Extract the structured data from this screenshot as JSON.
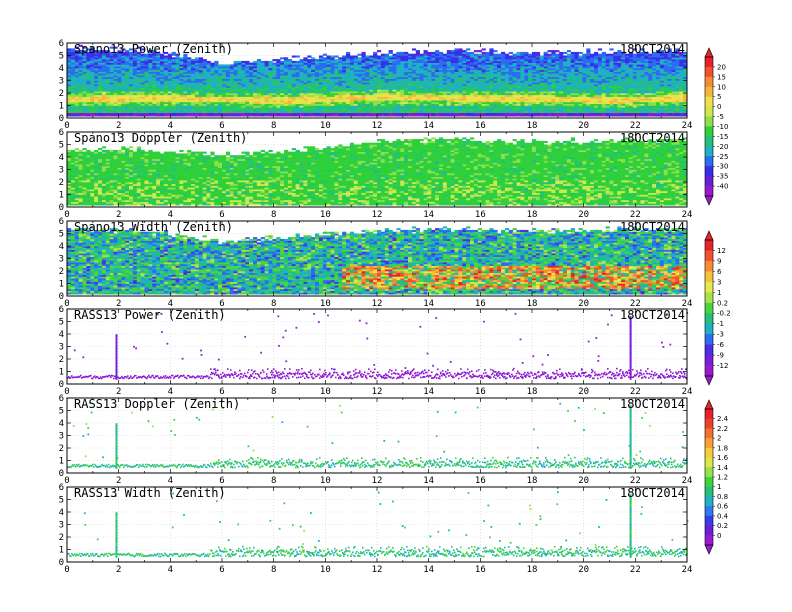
{
  "figure": {
    "date": "18OCT2014",
    "x_ticks": [
      "0",
      "2",
      "4",
      "6",
      "8",
      "10",
      "12",
      "14",
      "16",
      "18",
      "20",
      "22",
      "24"
    ],
    "y_ticks": [
      "0",
      "1",
      "2",
      "3",
      "4",
      "5",
      "6"
    ]
  },
  "chart_data": [
    {
      "type": "heatmap",
      "title": "Spano13 Power (Zenith)",
      "xlim": [
        0,
        24
      ],
      "ylim": [
        0,
        6
      ],
      "grid": true,
      "colorbar": "power",
      "approx_profile": {
        "x_hours": [
          0,
          3,
          6,
          9,
          12,
          15,
          18,
          21,
          24
        ],
        "strong_layer_height": [
          1.5,
          1.6,
          1.5,
          1.4,
          1.7,
          1.6,
          1.6,
          1.4,
          1.6
        ],
        "top_height": [
          5.6,
          5.4,
          4.4,
          4.8,
          5.2,
          5.4,
          5.2,
          5.3,
          5.4
        ]
      }
    },
    {
      "type": "heatmap",
      "title": "Spano13 Doppler (Zenith)",
      "xlim": [
        0,
        24
      ],
      "ylim": [
        0,
        6
      ],
      "grid": true,
      "colorbar": "power",
      "approx_profile": {
        "x_hours": [
          0,
          3,
          6,
          9,
          12,
          15,
          18,
          21,
          24
        ],
        "top_height": [
          4.6,
          4.6,
          4.2,
          4.6,
          5.2,
          5.4,
          5.2,
          5.3,
          5.4
        ]
      }
    },
    {
      "type": "heatmap",
      "title": "Spano13 Width (Zenith)",
      "xlim": [
        0,
        24
      ],
      "ylim": [
        0,
        6
      ],
      "grid": true,
      "colorbar": "width",
      "approx_profile": {
        "x_hours": [
          0,
          3,
          6,
          9,
          12,
          15,
          18,
          21,
          24
        ],
        "top_height": [
          5.4,
          5.2,
          4.4,
          4.8,
          5.2,
          5.4,
          5.2,
          5.3,
          5.4
        ],
        "high_width_region_hours": [
          10,
          24
        ],
        "high_width_region_height": [
          0.6,
          2.4
        ]
      }
    },
    {
      "type": "heatmap",
      "title": "RASS13 Power (Zenith)",
      "xlim": [
        0,
        24
      ],
      "ylim": [
        0,
        6
      ],
      "grid": true,
      "colorbar": "width",
      "approx_profile": {
        "layer_height": [
          0.5,
          1.0
        ],
        "spike_hours": [
          1.9,
          21.8
        ],
        "spike_top_height": [
          4.1,
          5.5
        ]
      }
    },
    {
      "type": "heatmap",
      "title": "RASS13 Doppler (Zenith)",
      "xlim": [
        0,
        24
      ],
      "ylim": [
        0,
        6
      ],
      "grid": true,
      "colorbar": "rass",
      "approx_profile": {
        "layer_height": [
          0.5,
          1.0
        ],
        "spike_hours": [
          1.9,
          21.8
        ],
        "spike_top_height": [
          4.1,
          5.5
        ]
      }
    },
    {
      "type": "heatmap",
      "title": "RASS13 Width (Zenith)",
      "xlim": [
        0,
        24
      ],
      "ylim": [
        0,
        6
      ],
      "grid": true,
      "colorbar": "rass",
      "approx_profile": {
        "layer_height": [
          0.5,
          1.0
        ],
        "spike_hours": [
          1.9,
          21.8
        ],
        "spike_top_height": [
          4.1,
          5.5
        ]
      }
    }
  ],
  "colorbars": {
    "power": {
      "labels": [
        "20",
        "15",
        "10",
        "5",
        "0",
        "-5",
        "-10",
        "-15",
        "-20",
        "-25",
        "-30",
        "-35",
        "-40"
      ],
      "colors": [
        "#e8222a",
        "#f4502e",
        "#f98c32",
        "#f6b63c",
        "#f2e04a",
        "#cfe84e",
        "#8ee04a",
        "#2fd03a",
        "#22c07c",
        "#1fb0c8",
        "#2b6cf0",
        "#3a2ee8",
        "#6a1fd8",
        "#9a1ad0"
      ]
    },
    "width": {
      "labels": [
        "12",
        "9",
        "6",
        "3",
        "1",
        "0.2",
        "-0.2",
        "-1",
        "-3",
        "-6",
        "-9",
        "-12"
      ],
      "colors": [
        "#e8222a",
        "#f4502e",
        "#f98c32",
        "#f6c23c",
        "#e8e84a",
        "#a8e24c",
        "#4ad43e",
        "#22c07c",
        "#1fb0c8",
        "#2b6cf0",
        "#4a2ee8",
        "#7a1fd8",
        "#9a1ad0"
      ]
    },
    "rass": {
      "labels": [
        "2.4",
        "2.2",
        "2",
        "1.8",
        "1.6",
        "1.4",
        "1.2",
        "1",
        "0.8",
        "0.6",
        "0.4",
        "0.2",
        "0"
      ],
      "colors": [
        "#e8222a",
        "#f0402c",
        "#f4702e",
        "#f8a034",
        "#f4cc3e",
        "#dce84a",
        "#98e04a",
        "#3ed43e",
        "#22c07c",
        "#1fb0c8",
        "#2b7cf0",
        "#3a3ee8",
        "#6a1fd8",
        "#9a1ad0"
      ]
    }
  }
}
